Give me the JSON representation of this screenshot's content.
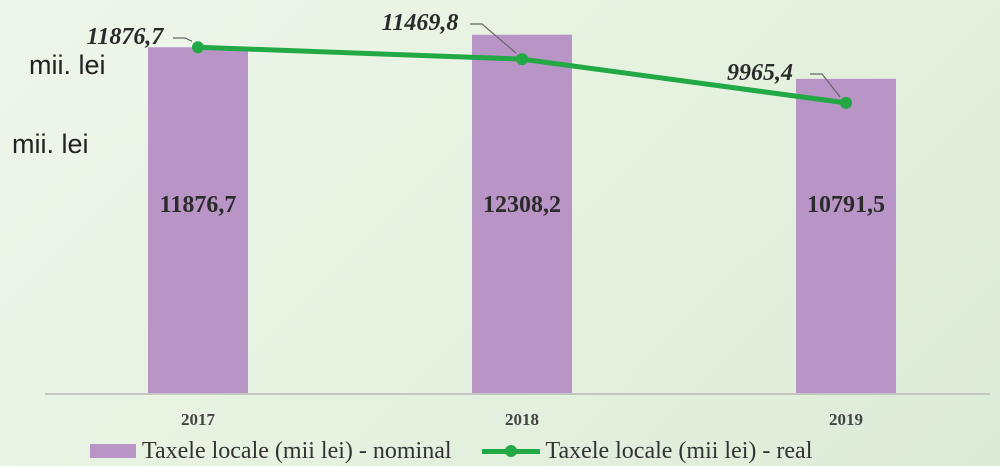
{
  "chart_data": {
    "type": "bar",
    "categories": [
      "2017",
      "2018",
      "2019"
    ],
    "series": [
      {
        "name": "Taxele locale (mii lei) - nominal",
        "type": "bar",
        "values": [
          11876.7,
          12308.2,
          10791.5
        ],
        "labels": [
          "11876,7",
          "12308,2",
          "10791,5"
        ]
      },
      {
        "name": "Taxele locale (mii lei) - real",
        "type": "line",
        "values": [
          11876.7,
          11469.8,
          9965.4
        ],
        "labels": [
          "11876,7",
          "11469,8",
          "9965,4"
        ]
      }
    ],
    "unit_labels": [
      "mii. lei",
      "mii. lei"
    ],
    "ylim": [
      0,
      13500
    ]
  },
  "colors": {
    "bar": "#b994c6",
    "line": "#22a844",
    "axis": "#b8b8b8"
  }
}
